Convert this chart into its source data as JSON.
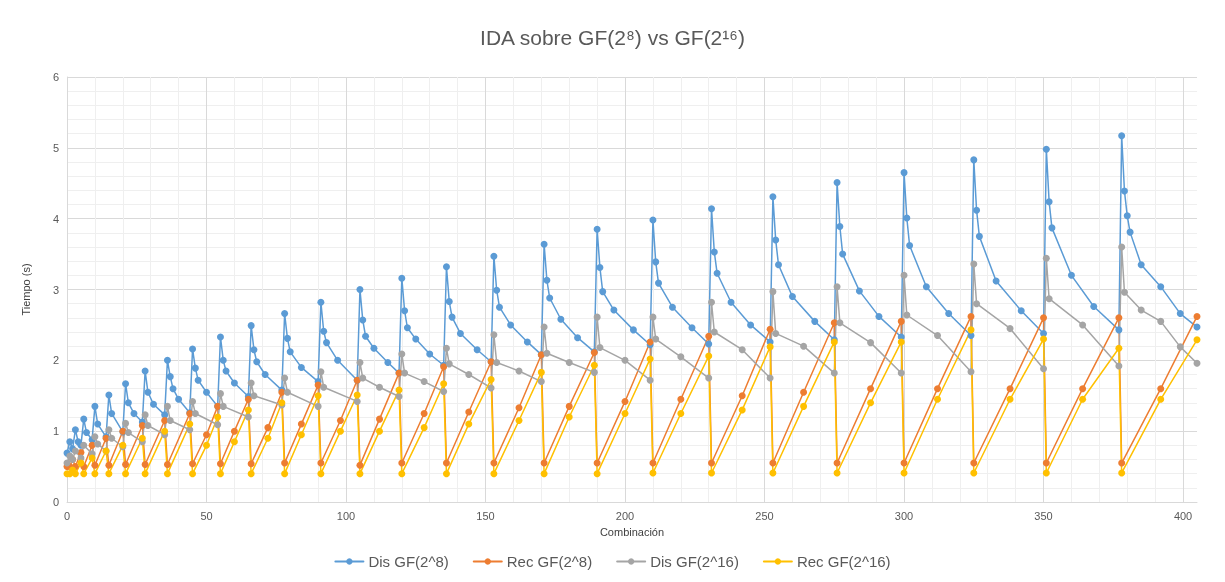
{
  "chart_data": {
    "type": "line",
    "title": "IDA sobre GF(2⁸) vs GF(2¹⁶)",
    "xlabel": "Combinación",
    "ylabel": "Tiempo (s)",
    "xlim": [
      0,
      405
    ],
    "xticks": [
      0,
      50,
      100,
      150,
      200,
      250,
      300,
      350,
      400
    ],
    "ylim": [
      0,
      6
    ],
    "yticks": [
      0,
      1,
      2,
      3,
      4,
      5,
      6
    ],
    "grid": true,
    "legend": "bottom",
    "marker": "circle",
    "line_style": "solid",
    "series": [
      {
        "name": "Dis GF(2^8)",
        "color": "#5b9bd5",
        "x": [
          0,
          1,
          2,
          3,
          4,
          5,
          6,
          7,
          9,
          10,
          11,
          14,
          15,
          16,
          20,
          21,
          22,
          24,
          27,
          28,
          29,
          31,
          35,
          36,
          37,
          38,
          40,
          44,
          45,
          46,
          47,
          50,
          54,
          55,
          56,
          57,
          60,
          65,
          66,
          67,
          68,
          71,
          77,
          78,
          79,
          80,
          84,
          90,
          91,
          92,
          93,
          97,
          104,
          105,
          106,
          107,
          110,
          115,
          119,
          120,
          121,
          122,
          125,
          130,
          135,
          136,
          137,
          138,
          141,
          147,
          152,
          153,
          154,
          155,
          159,
          165,
          170,
          171,
          172,
          173,
          177,
          183,
          189,
          190,
          191,
          192,
          196,
          203,
          209,
          210,
          211,
          212,
          217,
          224,
          230,
          231,
          232,
          233,
          238,
          245,
          252,
          253,
          254,
          255,
          260,
          268,
          275,
          276,
          277,
          278,
          284,
          291,
          299,
          300,
          301,
          302,
          308,
          316,
          324,
          325,
          326,
          327,
          333,
          342,
          350,
          351,
          352,
          353,
          360,
          368,
          377,
          378,
          379,
          380,
          381,
          385,
          392,
          399,
          405
        ],
        "values": [
          0.69,
          0.85,
          0.75,
          1.02,
          0.85,
          0.8,
          1.17,
          0.98,
          0.88,
          1.35,
          1.1,
          0.92,
          1.51,
          1.25,
          0.99,
          1.67,
          1.4,
          1.25,
          1.13,
          1.85,
          1.55,
          1.38,
          1.23,
          2.0,
          1.77,
          1.6,
          1.45,
          1.26,
          2.16,
          1.89,
          1.72,
          1.55,
          1.35,
          2.33,
          2.0,
          1.85,
          1.68,
          1.49,
          2.49,
          2.15,
          1.98,
          1.8,
          1.58,
          2.66,
          2.31,
          2.12,
          1.9,
          1.7,
          2.82,
          2.41,
          2.25,
          2.0,
          1.72,
          3.0,
          2.57,
          2.34,
          2.17,
          1.97,
          1.82,
          3.16,
          2.7,
          2.46,
          2.3,
          2.09,
          1.93,
          3.32,
          2.83,
          2.61,
          2.38,
          2.15,
          1.98,
          3.47,
          2.99,
          2.75,
          2.5,
          2.26,
          2.08,
          3.64,
          3.13,
          2.88,
          2.58,
          2.32,
          2.12,
          3.85,
          3.31,
          2.97,
          2.71,
          2.43,
          2.22,
          3.98,
          3.39,
          3.09,
          2.75,
          2.46,
          2.23,
          4.14,
          3.53,
          3.23,
          2.82,
          2.5,
          2.26,
          4.31,
          3.7,
          3.35,
          2.9,
          2.55,
          2.29,
          4.51,
          3.89,
          3.5,
          2.98,
          2.62,
          2.33,
          4.65,
          4.01,
          3.62,
          3.04,
          2.66,
          2.35,
          4.83,
          4.12,
          3.75,
          3.12,
          2.7,
          2.38,
          4.98,
          4.24,
          3.87,
          3.2,
          2.76,
          2.43,
          5.17,
          4.39,
          4.04,
          3.81,
          3.35,
          3.04,
          2.66,
          2.47
        ]
      },
      {
        "name": "Rec GF(2^8)",
        "color": "#ed7d31",
        "x": [
          0,
          1,
          2,
          3,
          5,
          6,
          9,
          10,
          14,
          15,
          20,
          21,
          27,
          28,
          35,
          36,
          44,
          45,
          50,
          54,
          55,
          60,
          65,
          66,
          72,
          77,
          78,
          84,
          90,
          91,
          98,
          104,
          105,
          112,
          119,
          120,
          128,
          135,
          136,
          144,
          152,
          153,
          162,
          170,
          171,
          180,
          189,
          190,
          200,
          209,
          210,
          220,
          230,
          231,
          242,
          252,
          253,
          264,
          275,
          276,
          288,
          299,
          300,
          312,
          324,
          325,
          338,
          350,
          351,
          364,
          377,
          378,
          392,
          405
        ],
        "values": [
          0.5,
          0.5,
          0.6,
          0.5,
          0.7,
          0.5,
          0.8,
          0.52,
          0.9,
          0.52,
          1.0,
          0.53,
          1.08,
          0.53,
          1.15,
          0.53,
          1.25,
          0.54,
          0.95,
          1.35,
          0.54,
          1.0,
          1.45,
          0.54,
          1.05,
          1.55,
          0.55,
          1.1,
          1.65,
          0.55,
          1.15,
          1.72,
          0.52,
          1.17,
          1.82,
          0.55,
          1.25,
          1.91,
          0.55,
          1.27,
          1.98,
          0.55,
          1.33,
          2.08,
          0.55,
          1.35,
          2.11,
          0.55,
          1.42,
          2.26,
          0.55,
          1.45,
          2.34,
          0.55,
          1.5,
          2.44,
          0.55,
          1.55,
          2.53,
          0.55,
          1.6,
          2.55,
          0.55,
          1.6,
          2.62,
          0.55,
          1.6,
          2.6,
          0.55,
          1.6,
          2.6,
          0.55,
          1.6,
          2.62
        ]
      },
      {
        "name": "Dis GF(2^16)",
        "color": "#a5a5a5",
        "x": [
          0,
          1,
          2,
          3,
          5,
          6,
          9,
          10,
          11,
          14,
          15,
          16,
          20,
          21,
          22,
          27,
          28,
          29,
          35,
          36,
          37,
          44,
          45,
          46,
          54,
          55,
          56,
          65,
          66,
          67,
          77,
          78,
          79,
          90,
          91,
          92,
          104,
          105,
          106,
          112,
          119,
          120,
          121,
          128,
          135,
          136,
          137,
          144,
          152,
          153,
          154,
          162,
          170,
          171,
          172,
          180,
          189,
          190,
          191,
          200,
          209,
          210,
          211,
          220,
          230,
          231,
          232,
          242,
          252,
          253,
          254,
          264,
          275,
          276,
          277,
          288,
          299,
          300,
          301,
          312,
          324,
          325,
          326,
          338,
          350,
          351,
          352,
          364,
          377,
          378,
          379,
          385,
          392,
          399,
          405
        ],
        "values": [
          0.55,
          0.65,
          0.6,
          0.72,
          0.62,
          0.8,
          0.68,
          0.92,
          0.82,
          0.72,
          1.02,
          0.9,
          0.78,
          1.11,
          0.98,
          0.85,
          1.23,
          1.08,
          0.95,
          1.35,
          1.15,
          1.02,
          1.42,
          1.25,
          1.09,
          1.53,
          1.35,
          1.2,
          1.68,
          1.5,
          1.37,
          1.75,
          1.55,
          1.35,
          1.84,
          1.62,
          1.42,
          1.97,
          1.75,
          1.62,
          1.49,
          2.09,
          1.82,
          1.7,
          1.56,
          2.17,
          1.95,
          1.8,
          1.61,
          2.36,
          1.97,
          1.85,
          1.7,
          2.47,
          2.1,
          1.97,
          1.83,
          2.61,
          2.18,
          2.0,
          1.72,
          2.61,
          2.3,
          2.05,
          1.75,
          2.82,
          2.4,
          2.15,
          1.75,
          2.97,
          2.38,
          2.2,
          1.82,
          3.04,
          2.53,
          2.25,
          1.82,
          3.2,
          2.64,
          2.35,
          1.84,
          3.36,
          2.8,
          2.45,
          1.88,
          3.44,
          2.87,
          2.5,
          1.92,
          3.6,
          2.96,
          2.71,
          2.55,
          2.19,
          1.96
        ]
      },
      {
        "name": "Rec GF(2^16)",
        "color": "#ffc000",
        "x": [
          0,
          1,
          2,
          3,
          5,
          6,
          9,
          10,
          14,
          15,
          20,
          21,
          27,
          28,
          35,
          36,
          44,
          45,
          50,
          54,
          55,
          60,
          65,
          66,
          72,
          77,
          78,
          84,
          90,
          91,
          98,
          104,
          105,
          112,
          119,
          120,
          128,
          135,
          136,
          144,
          152,
          153,
          162,
          170,
          171,
          180,
          189,
          190,
          200,
          209,
          210,
          220,
          230,
          231,
          242,
          252,
          253,
          264,
          275,
          276,
          288,
          299,
          300,
          312,
          324,
          325,
          338,
          350,
          351,
          364,
          377,
          378,
          392,
          405
        ],
        "values": [
          0.4,
          0.4,
          0.45,
          0.4,
          0.55,
          0.4,
          0.62,
          0.4,
          0.72,
          0.4,
          0.8,
          0.4,
          0.9,
          0.4,
          1.0,
          0.4,
          1.1,
          0.4,
          0.8,
          1.2,
          0.4,
          0.85,
          1.3,
          0.4,
          0.9,
          1.4,
          0.4,
          0.95,
          1.5,
          0.4,
          1.0,
          1.51,
          0.4,
          1.0,
          1.58,
          0.4,
          1.05,
          1.67,
          0.4,
          1.1,
          1.73,
          0.4,
          1.15,
          1.83,
          0.4,
          1.2,
          1.93,
          0.4,
          1.25,
          2.02,
          0.41,
          1.25,
          2.06,
          0.41,
          1.3,
          2.19,
          0.41,
          1.35,
          2.26,
          0.41,
          1.4,
          2.26,
          0.41,
          1.45,
          2.43,
          0.41,
          1.45,
          2.3,
          0.41,
          1.45,
          2.17,
          0.41,
          1.45,
          2.29
        ]
      }
    ]
  }
}
